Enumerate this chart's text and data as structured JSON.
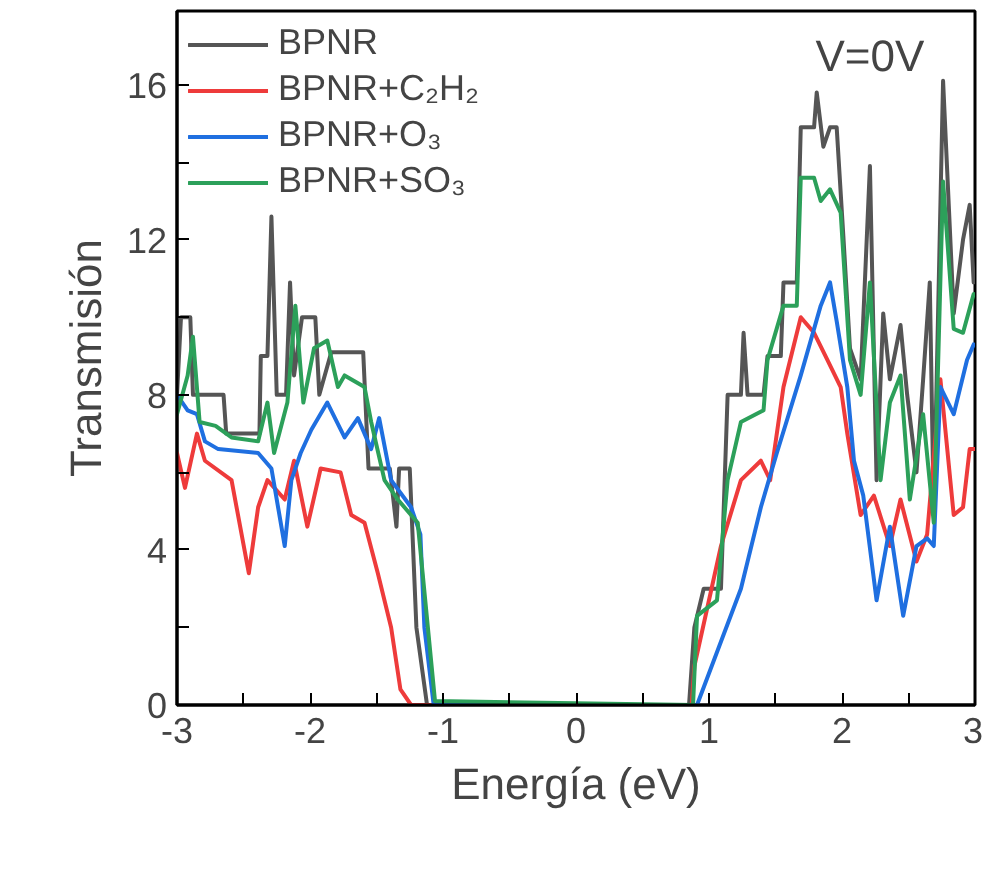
{
  "chart_data": {
    "type": "line",
    "xlabel": "Energía (eV)",
    "ylabel": "Transmisión",
    "annotations": [
      "V=0V"
    ],
    "xlim": [
      -3,
      3
    ],
    "ylim": [
      0,
      17.9
    ],
    "xticks": [
      -3,
      {
        "value": -2.5,
        "label": null
      },
      -2,
      {
        "value": -1.5,
        "label": null
      },
      -1,
      {
        "value": -0.5,
        "label": null
      },
      0,
      {
        "value": 0.5,
        "label": null
      },
      1,
      {
        "value": 1.5,
        "label": null
      },
      2,
      {
        "value": 2.5,
        "label": null
      },
      3
    ],
    "yticks": [
      0,
      {
        "value": 2,
        "label": null
      },
      4,
      {
        "value": 6,
        "label": null
      },
      8,
      {
        "value": 10,
        "label": null
      },
      12,
      {
        "value": 14,
        "label": null
      },
      16
    ],
    "grid": false,
    "legend": "top left",
    "line_style": "solid",
    "marker": "none",
    "series": [
      {
        "name": "BPNR",
        "color": "#555555",
        "x": [
          -3,
          -2.97,
          -2.9,
          -2.88,
          -2.65,
          -2.63,
          -2.38,
          -2.37,
          -2.32,
          -2.29,
          -2.25,
          -2.18,
          -2.15,
          -2.12,
          -2.06,
          -1.96,
          -1.93,
          -1.84,
          -1.6,
          -1.56,
          -1.4,
          -1.35,
          -1.33,
          -1.25,
          -1.2,
          -1.12,
          0.85,
          0.89,
          0.96,
          1.09,
          1.14,
          1.24,
          1.26,
          1.29,
          1.41,
          1.44,
          1.54,
          1.56,
          1.66,
          1.69,
          1.79,
          1.81,
          1.86,
          1.91,
          1.96,
          2.01,
          2.06,
          2.14,
          2.21,
          2.26,
          2.31,
          2.36,
          2.44,
          2.49,
          2.56,
          2.61,
          2.66,
          2.69,
          2.76,
          2.84,
          2.91,
          2.96,
          2.99
        ],
        "values": [
          8,
          10,
          10,
          8,
          8,
          7,
          7,
          9,
          9,
          12.6,
          8,
          8,
          10.9,
          8.5,
          10,
          10,
          8,
          9.1,
          9.1,
          6.1,
          6.1,
          4.6,
          6.1,
          6.1,
          2,
          0,
          0,
          2,
          3,
          3,
          8,
          8,
          9.6,
          8,
          8,
          9,
          9,
          10.9,
          10.9,
          14.9,
          14.9,
          15.8,
          14.4,
          14.9,
          14.9,
          12.1,
          9.2,
          8.4,
          13.9,
          5.8,
          10.1,
          8.4,
          9.8,
          8,
          6,
          8.4,
          10.9,
          4.9,
          16.1,
          10.1,
          12,
          12.9,
          10.9
        ]
      },
      {
        "name": "BPNR+C₂H₂",
        "color": "#ee3b3b",
        "x": [
          -3,
          -2.94,
          -2.85,
          -2.79,
          -2.59,
          -2.46,
          -2.39,
          -2.32,
          -2.19,
          -2.12,
          -2.02,
          -1.92,
          -1.77,
          -1.69,
          -1.59,
          -1.49,
          -1.39,
          -1.32,
          -1.24,
          0.87,
          0.89,
          1.09,
          1.24,
          1.39,
          1.46,
          1.56,
          1.69,
          1.79,
          1.89,
          1.99,
          2.04,
          2.14,
          2.24,
          2.36,
          2.44,
          2.56,
          2.64,
          2.74,
          2.84,
          2.91,
          2.96,
          3
        ],
        "values": [
          6.5,
          5.6,
          7,
          6.3,
          5.8,
          3.4,
          5.1,
          5.8,
          5.3,
          6.3,
          4.6,
          6.1,
          6,
          4.9,
          4.7,
          3.4,
          2,
          0.4,
          0,
          0,
          1,
          4.1,
          5.8,
          6.3,
          5.8,
          8.2,
          10,
          9.6,
          8.9,
          8.2,
          7,
          4.9,
          5.4,
          4.1,
          5.3,
          3.7,
          4.4,
          8.4,
          4.9,
          5.1,
          6.6,
          6.6
        ]
      },
      {
        "name": "BPNR+O₃",
        "color": "#1f6fe0",
        "x": [
          -3,
          -2.92,
          -2.85,
          -2.79,
          -2.69,
          -2.39,
          -2.29,
          -2.19,
          -2.14,
          -2.07,
          -1.99,
          -1.87,
          -1.74,
          -1.64,
          -1.54,
          -1.48,
          -1.39,
          -1.24,
          -1.17,
          -1.14,
          -1.07,
          0.91,
          1.24,
          1.39,
          1.51,
          1.69,
          1.84,
          1.91,
          1.96,
          2.04,
          2.09,
          2.16,
          2.26,
          2.36,
          2.46,
          2.56,
          2.64,
          2.69,
          2.74,
          2.84,
          2.94,
          2.99
        ],
        "values": [
          8,
          7.6,
          7.5,
          6.8,
          6.6,
          6.5,
          6.1,
          4.1,
          5.8,
          6.5,
          7.1,
          7.8,
          6.9,
          7.4,
          6.6,
          7.4,
          5.8,
          5.1,
          4.4,
          2,
          0,
          0,
          3,
          5.1,
          6.5,
          8.5,
          10.3,
          10.9,
          9.9,
          8.2,
          6.3,
          5.4,
          2.7,
          4.6,
          2.3,
          4.1,
          4.3,
          4.1,
          8.2,
          7.5,
          8.9,
          9.3
        ]
      },
      {
        "name": "BPNR+SO₃",
        "color": "#2ca05a",
        "x": [
          -3,
          -2.92,
          -2.88,
          -2.83,
          -2.71,
          -2.59,
          -2.39,
          -2.32,
          -2.27,
          -2.17,
          -2.11,
          -2.05,
          -1.97,
          -1.87,
          -1.79,
          -1.74,
          -1.59,
          -1.54,
          -1.44,
          -1.34,
          -1.19,
          -1.06,
          0.88,
          0.91,
          1.06,
          1.14,
          1.24,
          1.41,
          1.44,
          1.56,
          1.66,
          1.69,
          1.79,
          1.84,
          1.91,
          1.99,
          2.06,
          2.14,
          2.21,
          2.29,
          2.36,
          2.44,
          2.51,
          2.61,
          2.69,
          2.76,
          2.84,
          2.91,
          2.99
        ],
        "values": [
          7.5,
          8.5,
          9.5,
          7.3,
          7.2,
          6.9,
          6.8,
          7.8,
          6.5,
          7.8,
          10.3,
          7.8,
          9.2,
          9.4,
          8.2,
          8.5,
          8.2,
          7.3,
          5.8,
          5.3,
          4.7,
          0.1,
          0,
          2.3,
          2.7,
          5.8,
          7.3,
          7.6,
          8.9,
          10.3,
          10.3,
          13.6,
          13.6,
          13,
          13.3,
          12.7,
          8.9,
          8,
          10.9,
          5.8,
          7.8,
          8.5,
          5.3,
          7.5,
          4.7,
          13.5,
          9.7,
          9.6,
          10.6
        ]
      }
    ]
  }
}
